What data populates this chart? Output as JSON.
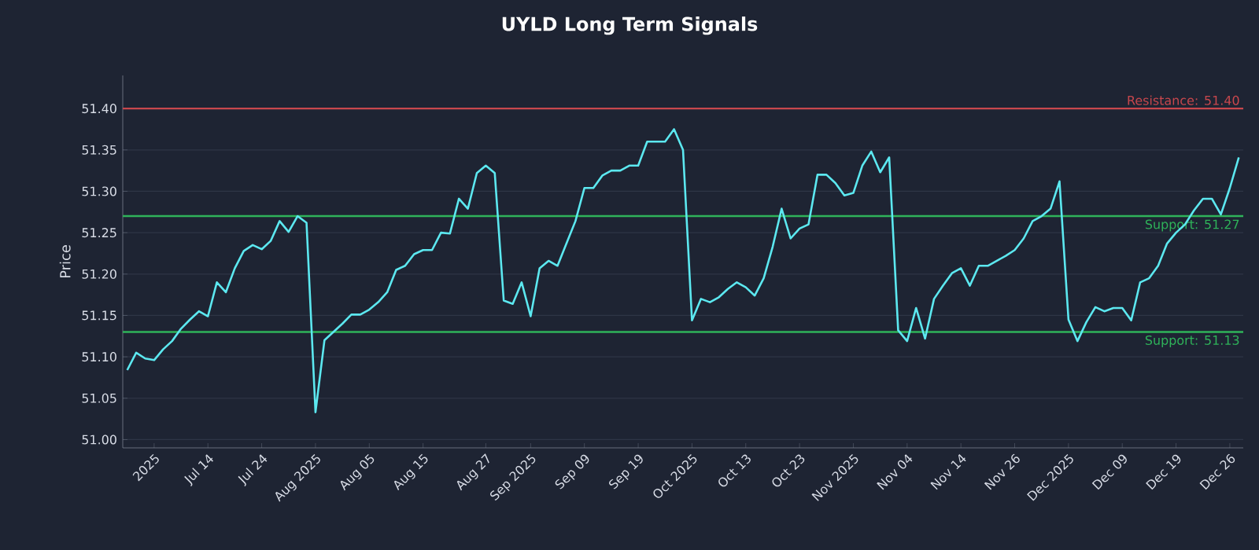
{
  "chart_data": {
    "type": "line",
    "title": "UYLD Long Term Signals",
    "ylabel": "Price",
    "categories": [
      null,
      null,
      null,
      "2025",
      null,
      null,
      null,
      null,
      null,
      "Jul 14",
      null,
      null,
      null,
      null,
      null,
      "Jul 24",
      null,
      null,
      null,
      null,
      null,
      "Aug 2025",
      null,
      null,
      null,
      null,
      null,
      "Aug 05",
      null,
      null,
      null,
      null,
      null,
      "Aug 15",
      null,
      null,
      null,
      null,
      null,
      null,
      "Aug 27",
      null,
      null,
      null,
      null,
      "Sep 2025",
      null,
      null,
      null,
      null,
      null,
      "Sep 09",
      null,
      null,
      null,
      null,
      null,
      "Sep 19",
      null,
      null,
      null,
      null,
      null,
      "Oct 2025",
      null,
      null,
      null,
      null,
      null,
      "Oct 13",
      null,
      null,
      null,
      null,
      null,
      "Oct 23",
      null,
      null,
      null,
      null,
      null,
      "Nov 2025",
      null,
      null,
      null,
      null,
      null,
      "Nov 04",
      null,
      null,
      null,
      null,
      null,
      "Nov 14",
      null,
      null,
      null,
      null,
      null,
      "Nov 26",
      null,
      null,
      null,
      null,
      null,
      "Dec 2025",
      null,
      null,
      null,
      null,
      null,
      "Dec 09",
      null,
      null,
      null,
      null,
      null,
      "Dec 19",
      null,
      null,
      null,
      null,
      null,
      "Dec 26",
      null
    ],
    "series": [
      {
        "color": "#5ce8f0",
        "values": [
          51.084,
          51.105,
          51.098,
          51.096,
          51.109,
          51.119,
          51.134,
          51.145,
          51.155,
          51.149,
          51.19,
          51.178,
          51.207,
          51.228,
          51.235,
          51.23,
          51.24,
          51.264,
          51.251,
          51.27,
          51.262,
          51.033,
          51.12,
          51.13,
          51.14,
          51.151,
          51.151,
          51.157,
          51.166,
          51.178,
          51.205,
          51.21,
          51.224,
          51.229,
          51.229,
          51.25,
          51.249,
          51.291,
          51.279,
          51.322,
          51.331,
          51.322,
          51.168,
          51.164,
          51.19,
          51.149,
          51.207,
          51.216,
          51.21,
          51.237,
          51.264,
          51.304,
          51.304,
          51.319,
          51.325,
          51.325,
          51.331,
          51.331,
          51.36,
          51.36,
          51.36,
          51.375,
          51.35,
          51.144,
          51.17,
          51.166,
          51.172,
          51.182,
          51.19,
          51.184,
          51.174,
          51.195,
          51.233,
          51.279,
          51.243,
          51.255,
          51.26,
          51.32,
          51.32,
          51.31,
          51.295,
          51.298,
          51.331,
          51.348,
          51.323,
          51.341,
          51.132,
          51.119,
          51.159,
          51.122,
          51.17,
          51.186,
          51.201,
          51.207,
          51.186,
          51.21,
          51.21,
          51.216,
          51.222,
          51.229,
          51.243,
          51.264,
          51.27,
          51.279,
          51.312,
          51.145,
          51.119,
          51.142,
          51.16,
          51.155,
          51.159,
          51.159,
          51.144,
          51.19,
          51.195,
          51.21,
          51.237,
          51.25,
          51.26,
          51.277,
          51.291,
          51.291,
          51.272,
          51.304,
          51.341
        ]
      }
    ],
    "ylim": [
      50.99,
      51.44
    ],
    "yticks": [
      {
        "value": 51.0,
        "label": "51.00"
      },
      {
        "value": 51.05,
        "label": "51.05"
      },
      {
        "value": 51.1,
        "label": "51.10"
      },
      {
        "value": 51.15,
        "label": "51.15"
      },
      {
        "value": 51.2,
        "label": "51.20"
      },
      {
        "value": 51.25,
        "label": "51.25"
      },
      {
        "value": 51.3,
        "label": "51.30"
      },
      {
        "value": 51.35,
        "label": "51.35"
      },
      {
        "value": 51.4,
        "label": "51.40"
      }
    ],
    "grid": "y",
    "marker": "none",
    "line_style": "solid",
    "ref_lines": [
      {
        "axis": "y",
        "value": 51.4,
        "label": "Resistance: 51.40",
        "color": "#c8474d"
      },
      {
        "axis": "y",
        "value": 51.27,
        "label": "Support: 51.27",
        "color": "#2fb35a"
      },
      {
        "axis": "y",
        "value": 51.13,
        "label": "Support: 51.13",
        "color": "#2fb35a"
      }
    ]
  }
}
